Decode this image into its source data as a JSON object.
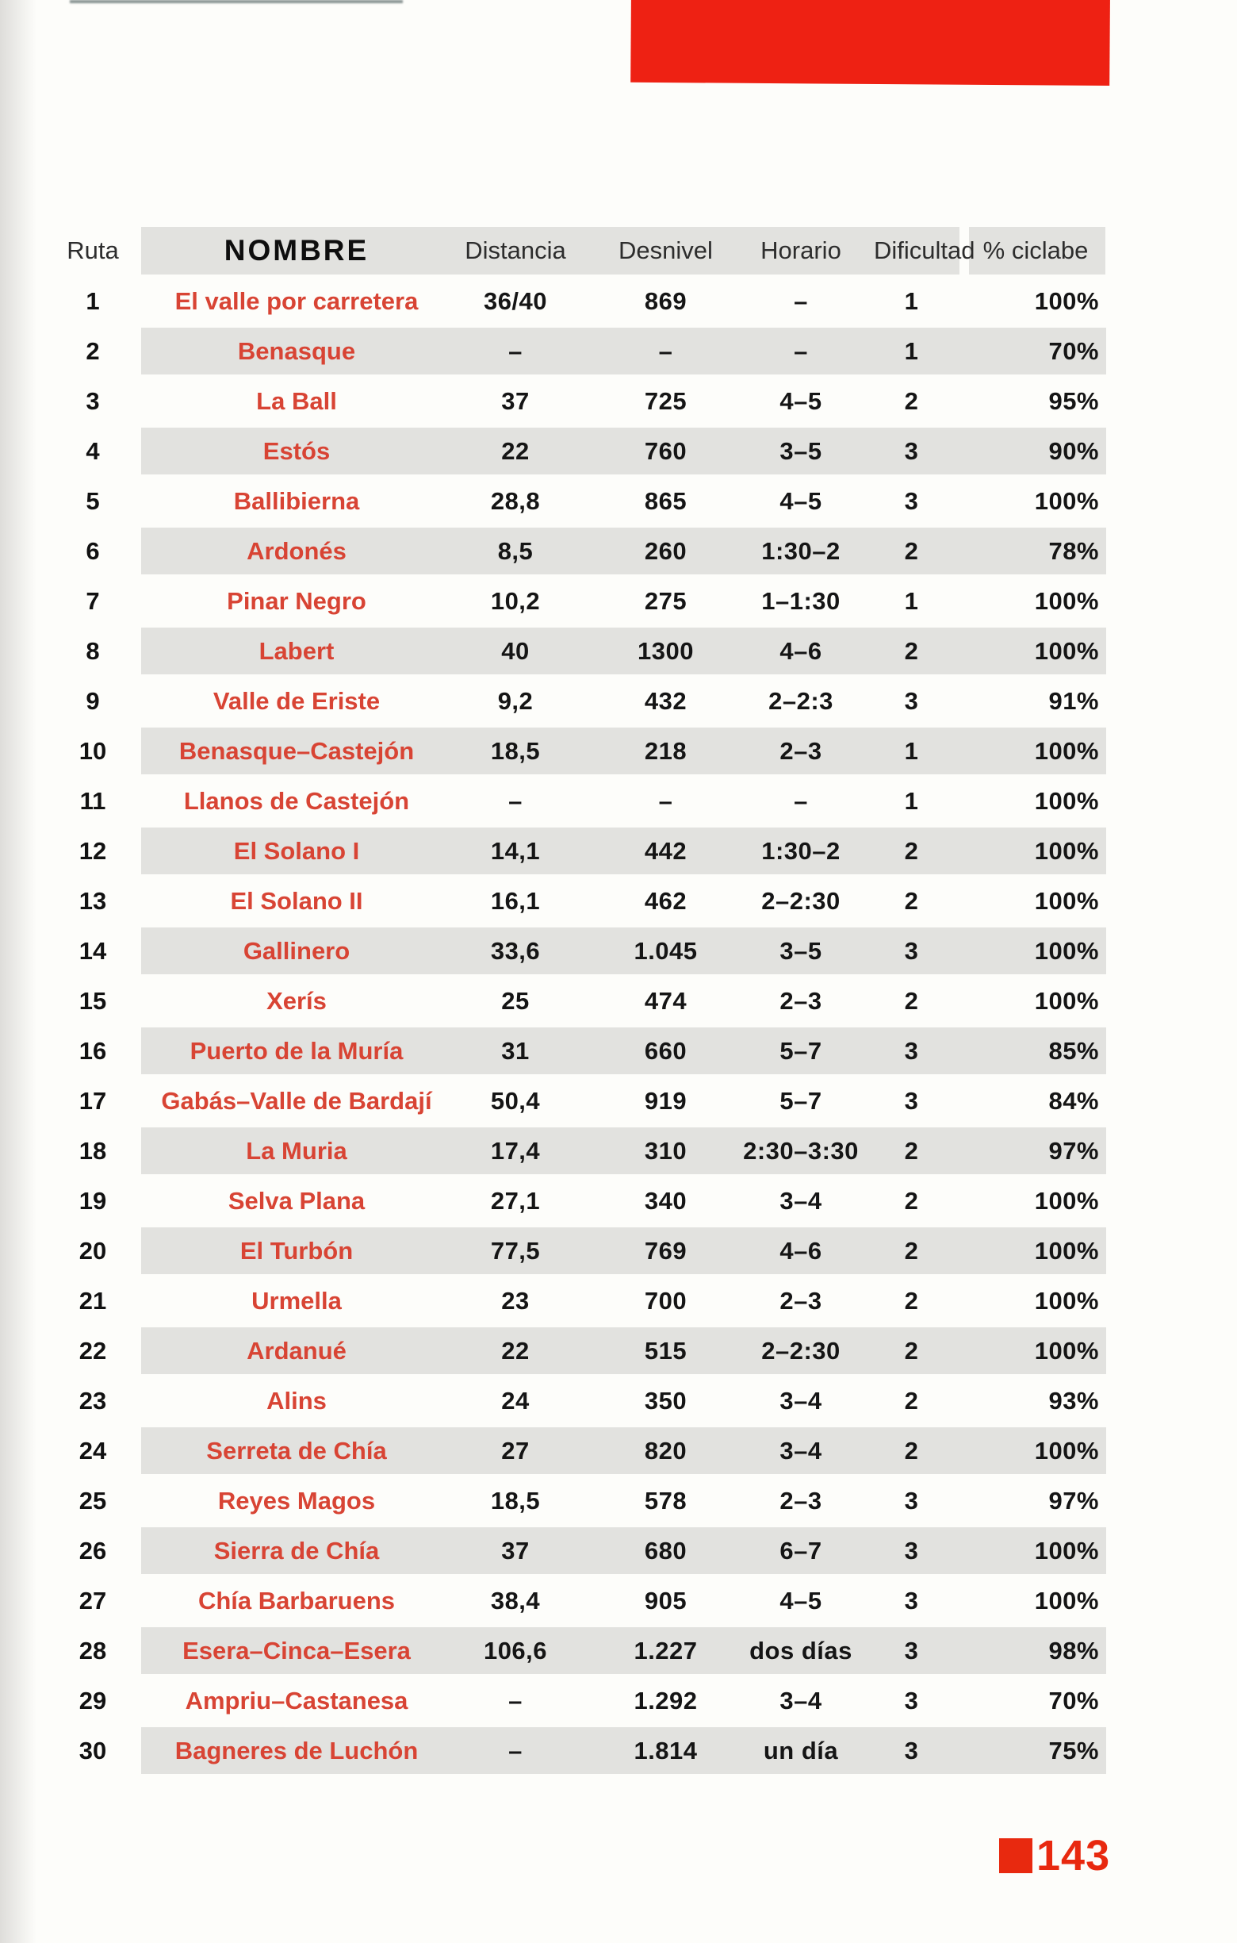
{
  "page": {
    "page_number": "143",
    "paper_color": "#fdfdfa",
    "stripe_color": "#e2e2df",
    "top_bar_color": "#ee2113",
    "footer_red": "#e8290f",
    "route_name_color": "#d84434"
  },
  "table": {
    "columns": [
      "Ruta",
      "NOMBRE",
      "Distancia",
      "Desnivel",
      "Horario",
      "Dificultad",
      "% ciclabe"
    ],
    "rows": [
      {
        "ruta": "1",
        "nombre": "El valle por carretera",
        "distancia": "36/40",
        "desnivel": "869",
        "horario": "–",
        "dificultad": "1",
        "ciclabe": "100%"
      },
      {
        "ruta": "2",
        "nombre": "Benasque",
        "distancia": "–",
        "desnivel": "–",
        "horario": "–",
        "dificultad": "1",
        "ciclabe": "70%"
      },
      {
        "ruta": "3",
        "nombre": "La Ball",
        "distancia": "37",
        "desnivel": "725",
        "horario": "4–5",
        "dificultad": "2",
        "ciclabe": "95%"
      },
      {
        "ruta": "4",
        "nombre": "Estós",
        "distancia": "22",
        "desnivel": "760",
        "horario": "3–5",
        "dificultad": "3",
        "ciclabe": "90%"
      },
      {
        "ruta": "5",
        "nombre": "Ballibierna",
        "distancia": "28,8",
        "desnivel": "865",
        "horario": "4–5",
        "dificultad": "3",
        "ciclabe": "100%"
      },
      {
        "ruta": "6",
        "nombre": "Ardonés",
        "distancia": "8,5",
        "desnivel": "260",
        "horario": "1:30–2",
        "dificultad": "2",
        "ciclabe": "78%"
      },
      {
        "ruta": "7",
        "nombre": "Pinar Negro",
        "distancia": "10,2",
        "desnivel": "275",
        "horario": "1–1:30",
        "dificultad": "1",
        "ciclabe": "100%"
      },
      {
        "ruta": "8",
        "nombre": "Labert",
        "distancia": "40",
        "desnivel": "1300",
        "horario": "4–6",
        "dificultad": "2",
        "ciclabe": "100%"
      },
      {
        "ruta": "9",
        "nombre": "Valle de Eriste",
        "distancia": "9,2",
        "desnivel": "432",
        "horario": "2–2:3",
        "dificultad": "3",
        "ciclabe": "91%"
      },
      {
        "ruta": "10",
        "nombre": "Benasque–Castejón",
        "distancia": "18,5",
        "desnivel": "218",
        "horario": "2–3",
        "dificultad": "1",
        "ciclabe": "100%"
      },
      {
        "ruta": "11",
        "nombre": "Llanos de Castejón",
        "distancia": "–",
        "desnivel": "–",
        "horario": "–",
        "dificultad": "1",
        "ciclabe": "100%"
      },
      {
        "ruta": "12",
        "nombre": "El Solano I",
        "distancia": "14,1",
        "desnivel": "442",
        "horario": "1:30–2",
        "dificultad": "2",
        "ciclabe": "100%"
      },
      {
        "ruta": "13",
        "nombre": "El Solano II",
        "distancia": "16,1",
        "desnivel": "462",
        "horario": "2–2:30",
        "dificultad": "2",
        "ciclabe": "100%"
      },
      {
        "ruta": "14",
        "nombre": "Gallinero",
        "distancia": "33,6",
        "desnivel": "1.045",
        "horario": "3–5",
        "dificultad": "3",
        "ciclabe": "100%"
      },
      {
        "ruta": "15",
        "nombre": "Xerís",
        "distancia": "25",
        "desnivel": "474",
        "horario": "2–3",
        "dificultad": "2",
        "ciclabe": "100%"
      },
      {
        "ruta": "16",
        "nombre": "Puerto de la Muría",
        "distancia": "31",
        "desnivel": "660",
        "horario": "5–7",
        "dificultad": "3",
        "ciclabe": "85%"
      },
      {
        "ruta": "17",
        "nombre": "Gabás–Valle de Bardají",
        "distancia": "50,4",
        "desnivel": "919",
        "horario": "5–7",
        "dificultad": "3",
        "ciclabe": "84%"
      },
      {
        "ruta": "18",
        "nombre": "La Muria",
        "distancia": "17,4",
        "desnivel": "310",
        "horario": "2:30–3:30",
        "dificultad": "2",
        "ciclabe": "97%"
      },
      {
        "ruta": "19",
        "nombre": "Selva Plana",
        "distancia": "27,1",
        "desnivel": "340",
        "horario": "3–4",
        "dificultad": "2",
        "ciclabe": "100%"
      },
      {
        "ruta": "20",
        "nombre": "El Turbón",
        "distancia": "77,5",
        "desnivel": "769",
        "horario": "4–6",
        "dificultad": "2",
        "ciclabe": "100%"
      },
      {
        "ruta": "21",
        "nombre": "Urmella",
        "distancia": "23",
        "desnivel": "700",
        "horario": "2–3",
        "dificultad": "2",
        "ciclabe": "100%"
      },
      {
        "ruta": "22",
        "nombre": "Ardanué",
        "distancia": "22",
        "desnivel": "515",
        "horario": "2–2:30",
        "dificultad": "2",
        "ciclabe": "100%"
      },
      {
        "ruta": "23",
        "nombre": "Alins",
        "distancia": "24",
        "desnivel": "350",
        "horario": "3–4",
        "dificultad": "2",
        "ciclabe": "93%"
      },
      {
        "ruta": "24",
        "nombre": "Serreta de Chía",
        "distancia": "27",
        "desnivel": "820",
        "horario": "3–4",
        "dificultad": "2",
        "ciclabe": "100%"
      },
      {
        "ruta": "25",
        "nombre": "Reyes Magos",
        "distancia": "18,5",
        "desnivel": "578",
        "horario": "2–3",
        "dificultad": "3",
        "ciclabe": "97%"
      },
      {
        "ruta": "26",
        "nombre": "Sierra de Chía",
        "distancia": "37",
        "desnivel": "680",
        "horario": "6–7",
        "dificultad": "3",
        "ciclabe": "100%"
      },
      {
        "ruta": "27",
        "nombre": "Chía Barbaruens",
        "distancia": "38,4",
        "desnivel": "905",
        "horario": "4–5",
        "dificultad": "3",
        "ciclabe": "100%"
      },
      {
        "ruta": "28",
        "nombre": "Esera–Cinca–Esera",
        "distancia": "106,6",
        "desnivel": "1.227",
        "horario": "dos días",
        "dificultad": "3",
        "ciclabe": "98%"
      },
      {
        "ruta": "29",
        "nombre": "Ampriu–Castanesa",
        "distancia": "–",
        "desnivel": "1.292",
        "horario": "3–4",
        "dificultad": "3",
        "ciclabe": "70%"
      },
      {
        "ruta": "30",
        "nombre": "Bagneres de Luchón",
        "distancia": "–",
        "desnivel": "1.814",
        "horario": "un día",
        "dificultad": "3",
        "ciclabe": "75%"
      }
    ]
  }
}
